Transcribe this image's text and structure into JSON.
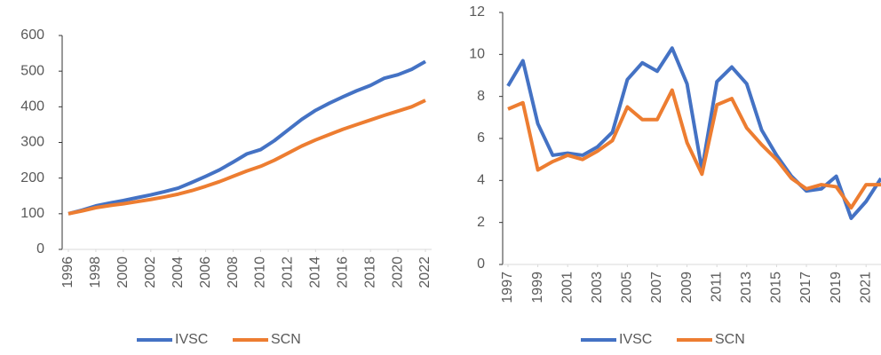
{
  "chart_data": [
    {
      "type": "line",
      "x": [
        1996,
        1997,
        1998,
        1999,
        2000,
        2001,
        2002,
        2003,
        2004,
        2005,
        2006,
        2007,
        2008,
        2009,
        2010,
        2011,
        2012,
        2013,
        2014,
        2015,
        2016,
        2017,
        2018,
        2019,
        2020,
        2021,
        2022
      ],
      "xlim": [
        1996,
        2022
      ],
      "xticks": [
        1996,
        1998,
        2000,
        2002,
        2004,
        2006,
        2008,
        2010,
        2012,
        2014,
        2016,
        2018,
        2020,
        2022
      ],
      "ylim": [
        0,
        600
      ],
      "yticks": [
        0,
        100,
        200,
        300,
        400,
        500,
        600
      ],
      "series": [
        {
          "name": "IVSC",
          "color": "#4472c4",
          "values": [
            100,
            110,
            122,
            130,
            137,
            145,
            153,
            162,
            172,
            188,
            205,
            223,
            245,
            268,
            280,
            305,
            335,
            365,
            390,
            410,
            428,
            445,
            460,
            480,
            490,
            505,
            527
          ]
        },
        {
          "name": "SCN",
          "color": "#ed7d31",
          "values": [
            100,
            108,
            117,
            123,
            128,
            134,
            140,
            147,
            155,
            165,
            177,
            190,
            205,
            220,
            233,
            250,
            270,
            290,
            307,
            322,
            337,
            350,
            363,
            376,
            388,
            400,
            418
          ]
        }
      ]
    },
    {
      "type": "line",
      "x": [
        1997,
        1998,
        1999,
        2000,
        2001,
        2002,
        2003,
        2004,
        2005,
        2006,
        2007,
        2008,
        2009,
        2010,
        2011,
        2012,
        2013,
        2014,
        2015,
        2016,
        2017,
        2018,
        2019,
        2020,
        2021,
        2022
      ],
      "xlim": [
        1997,
        2022
      ],
      "xticks": [
        1997,
        1999,
        2001,
        2003,
        2005,
        2007,
        2009,
        2011,
        2013,
        2015,
        2017,
        2019,
        2021
      ],
      "ylim": [
        0,
        12
      ],
      "yticks": [
        0,
        2,
        4,
        6,
        8,
        10,
        12
      ],
      "series": [
        {
          "name": "IVSC",
          "color": "#4472c4",
          "values": [
            8.5,
            9.7,
            6.7,
            5.2,
            5.3,
            5.2,
            5.6,
            6.3,
            8.8,
            9.6,
            9.2,
            10.3,
            8.6,
            4.5,
            8.7,
            9.4,
            8.6,
            6.4,
            5.2,
            4.2,
            3.5,
            3.6,
            4.2,
            2.2,
            3.0,
            4.1
          ]
        },
        {
          "name": "SCN",
          "color": "#ed7d31",
          "values": [
            7.4,
            7.7,
            4.5,
            4.9,
            5.2,
            5.0,
            5.4,
            5.9,
            7.5,
            6.9,
            6.9,
            8.3,
            5.8,
            4.3,
            7.6,
            7.9,
            6.5,
            5.7,
            5.0,
            4.1,
            3.6,
            3.8,
            3.7,
            2.7,
            3.8,
            3.8
          ]
        }
      ]
    }
  ]
}
